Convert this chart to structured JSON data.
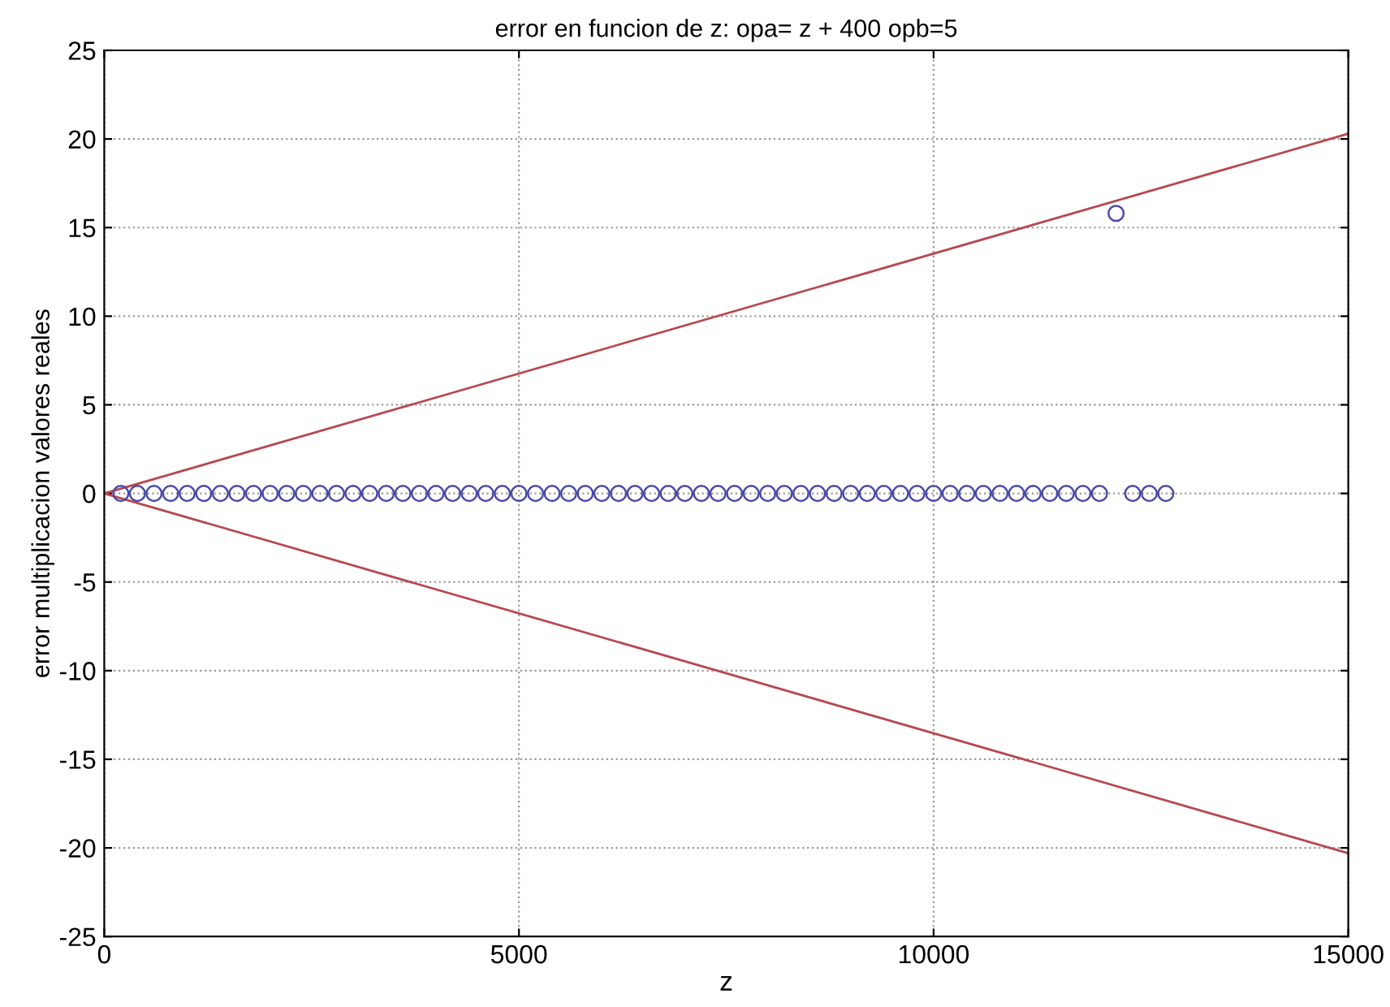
{
  "chart_data": {
    "type": "scatter",
    "title": "error en funcion de z: opa= z + 400 opb=5",
    "xlabel": "z",
    "ylabel": "error multiplicacion valores reales",
    "xlim": [
      0,
      15000
    ],
    "ylim": [
      -25,
      25
    ],
    "xticks": [
      0,
      5000,
      10000,
      15000
    ],
    "yticks": [
      -25,
      -20,
      -15,
      -10,
      -5,
      0,
      5,
      10,
      15,
      20,
      25
    ],
    "grid": true,
    "series": [
      {
        "marker": "circle",
        "color": "#4a4aa8",
        "x": [
          200,
          400,
          600,
          800,
          1000,
          1200,
          1400,
          1600,
          1800,
          2000,
          2200,
          2400,
          2600,
          2800,
          3000,
          3200,
          3400,
          3600,
          3800,
          4000,
          4200,
          4400,
          4600,
          4800,
          5000,
          5200,
          5400,
          5600,
          5800,
          6000,
          6200,
          6400,
          6600,
          6800,
          7000,
          7200,
          7400,
          7600,
          7800,
          8000,
          8200,
          8400,
          8600,
          8800,
          9000,
          9200,
          9400,
          9600,
          9800,
          10000,
          10200,
          10400,
          10600,
          10800,
          11000,
          11200,
          11400,
          11600,
          11800,
          12000,
          12200,
          12400,
          12600,
          12800
        ],
        "values": [
          0,
          0,
          0,
          0,
          0,
          0,
          0,
          0,
          0,
          0,
          0,
          0,
          0,
          0,
          0,
          0,
          0,
          0,
          0,
          0,
          0,
          0,
          0,
          0,
          0,
          0,
          0,
          0,
          0,
          0,
          0,
          0,
          0,
          0,
          0,
          0,
          0,
          0,
          0,
          0,
          0,
          0,
          0,
          0,
          0,
          0,
          0,
          0,
          0,
          0,
          0,
          0,
          0,
          0,
          0,
          0,
          0,
          0,
          0,
          0,
          15.8,
          0,
          0,
          0
        ]
      },
      {
        "type": "line",
        "marker": "none",
        "line_style": "solid",
        "color": "#b8484f",
        "x": [
          0,
          15000
        ],
        "values": [
          0,
          20.3
        ]
      },
      {
        "type": "line",
        "marker": "none",
        "line_style": "solid",
        "color": "#b8484f",
        "x": [
          0,
          15000
        ],
        "values": [
          0,
          -20.3
        ]
      }
    ]
  }
}
